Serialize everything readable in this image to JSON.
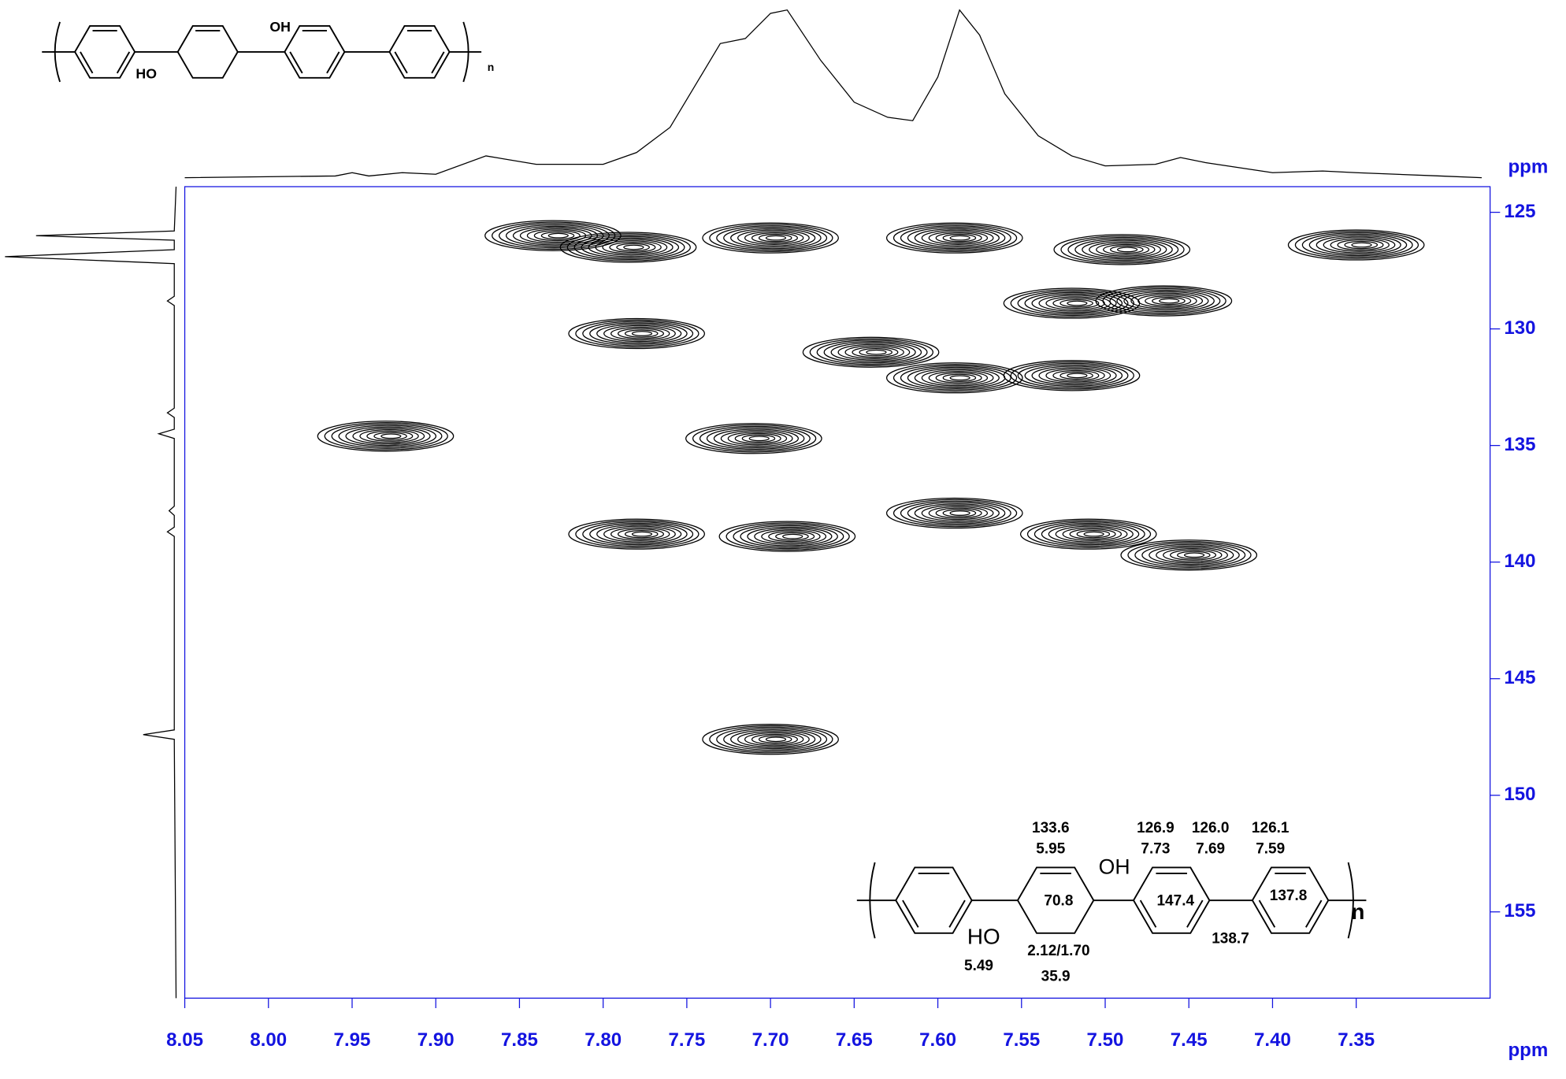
{
  "chart_data": {
    "type": "contour",
    "x_axis_label": "ppm",
    "y_axis_label": "ppm",
    "xlim": [
      8.05,
      7.27
    ],
    "ylim": [
      123.9,
      158.7
    ],
    "xticks": [
      8.05,
      {
        "value": 8,
        "label": "8.00"
      },
      7.95,
      {
        "value": 7.9,
        "label": "7.90"
      },
      7.85,
      {
        "value": 7.8,
        "label": "7.80"
      },
      7.75,
      {
        "value": 7.7,
        "label": "7.70"
      },
      7.65,
      {
        "value": 7.6,
        "label": "7.60"
      },
      7.55,
      {
        "value": 7.5,
        "label": "7.50"
      },
      7.45,
      {
        "value": 7.4,
        "label": "7.40"
      },
      7.35
    ],
    "yticks": [
      125,
      130,
      135,
      140,
      145,
      150,
      155
    ],
    "axis_color": "#1414e0",
    "color": "#000000",
    "peaks": {
      "x": [
        7.83,
        7.785,
        7.7,
        7.59,
        7.49,
        7.35,
        7.465,
        7.52,
        7.78,
        7.64,
        7.59,
        7.52,
        7.93,
        7.71,
        7.78,
        7.69,
        7.59,
        7.51,
        7.45,
        7.7
      ],
      "values": [
        126.0,
        126.5,
        126.1,
        126.1,
        126.6,
        126.4,
        128.8,
        128.9,
        130.2,
        131.0,
        132.1,
        132.0,
        134.6,
        134.7,
        138.8,
        138.9,
        137.9,
        138.8,
        139.7,
        147.6
      ]
    },
    "projection_top": {
      "x": [
        8.05,
        7.96,
        7.95,
        7.94,
        7.92,
        7.9,
        7.87,
        7.84,
        7.8,
        7.78,
        7.76,
        7.745,
        7.73,
        7.715,
        7.7,
        7.69,
        7.67,
        7.65,
        7.63,
        7.615,
        7.6,
        7.587,
        7.575,
        7.56,
        7.54,
        7.52,
        7.5,
        7.47,
        7.455,
        7.44,
        7.4,
        7.37,
        7.35,
        7.3,
        7.275
      ],
      "values": [
        0,
        1,
        3,
        1,
        3,
        2,
        13,
        8,
        8,
        15,
        30,
        55,
        80,
        83,
        98,
        100,
        70,
        45,
        36,
        34,
        60,
        100,
        85,
        50,
        25,
        13,
        7,
        8,
        12,
        9,
        3,
        4,
        3,
        1,
        0
      ]
    },
    "projection_left": {
      "x": [
        123.9,
        125.8,
        126.0,
        126.2,
        126.6,
        126.9,
        127.2,
        128.6,
        128.8,
        129.0,
        133.4,
        133.6,
        133.8,
        134.3,
        134.5,
        134.7,
        137.6,
        137.8,
        138.0,
        138.5,
        138.7,
        138.9,
        147.2,
        147.4,
        147.6,
        158.7
      ],
      "values": [
        1,
        2,
        82,
        2,
        2,
        100,
        2,
        2,
        6,
        2,
        2,
        6,
        2,
        2,
        11,
        2,
        2,
        5,
        2,
        2,
        6,
        2,
        2,
        20,
        2,
        1
      ]
    }
  },
  "structure_small": {
    "oh": "OH",
    "ho": "HO",
    "n": "n"
  },
  "structure_large": {
    "c_alkene": "133.6",
    "h_alkene": "5.95",
    "oh": "OH",
    "c_ortho": "126.9",
    "h_ortho": "7.73",
    "c_meta": "126.0",
    "h_meta": "7.69",
    "c_ring4": "126.1",
    "h_ring4": "7.59",
    "c_quat": "70.8",
    "c_ipso": "147.4",
    "c_biaryl": "138.7",
    "c_para": "137.8",
    "ho": "HO",
    "h_oh": "5.49",
    "h_ch2": "2.12/1.70",
    "c_ch2": "35.9",
    "n": "n"
  }
}
